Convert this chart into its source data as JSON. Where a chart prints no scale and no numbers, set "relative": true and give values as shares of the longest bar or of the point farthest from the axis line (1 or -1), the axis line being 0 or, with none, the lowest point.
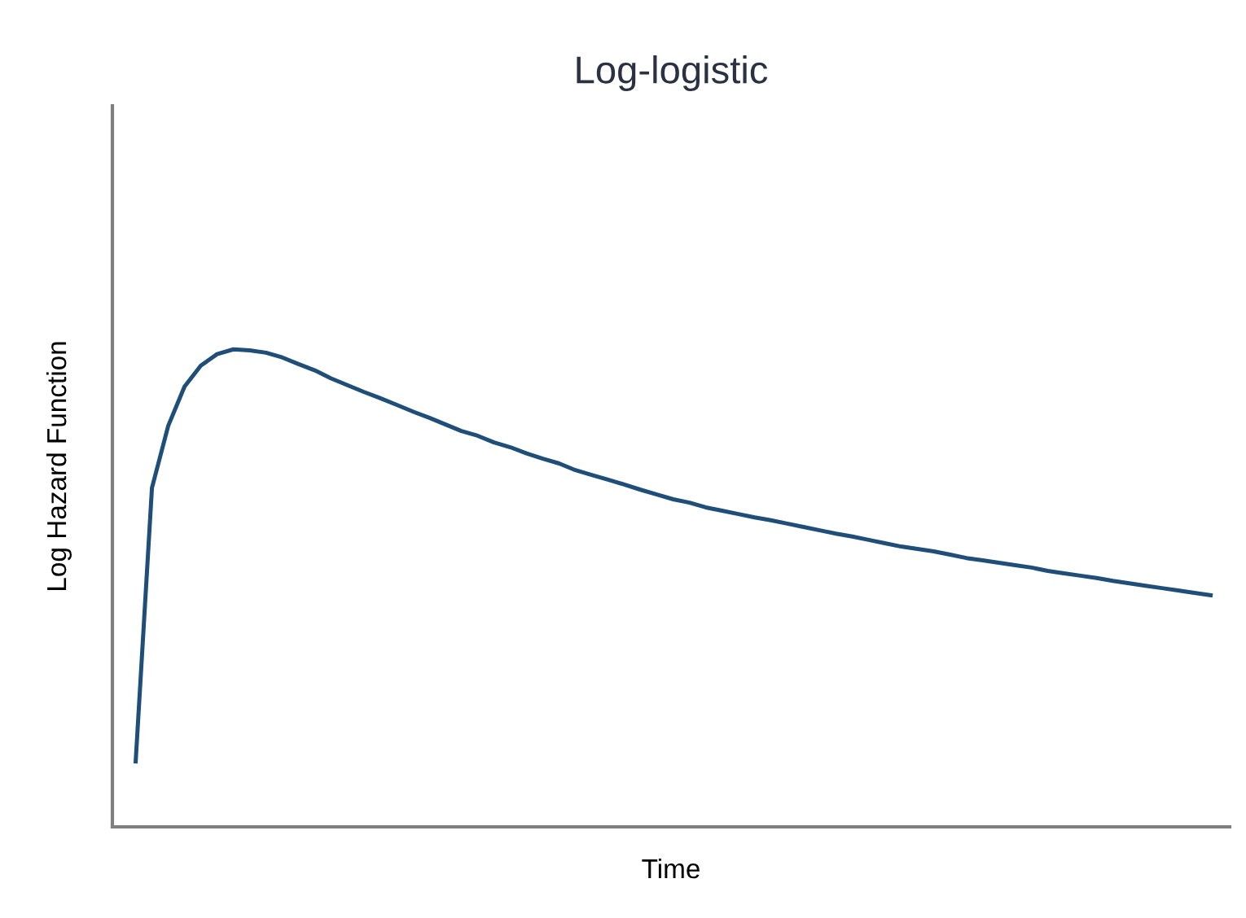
{
  "chart_data": {
    "type": "line",
    "title": "Log-logistic",
    "xlabel": "Time",
    "ylabel": "Log Hazard Function",
    "relative": true,
    "marker": "none",
    "line_style": "solid",
    "categories": [
      null,
      null,
      null,
      null,
      null,
      null,
      null,
      null,
      null,
      null,
      null,
      null,
      null,
      null,
      null,
      null,
      null,
      null,
      null,
      null,
      null,
      null,
      null,
      null,
      null,
      null,
      null,
      null,
      null,
      null,
      null,
      null,
      null,
      null,
      null,
      null,
      null,
      null,
      null,
      null,
      null,
      null,
      null,
      null,
      null,
      null,
      null,
      null,
      null,
      null,
      null,
      null,
      null,
      null,
      null,
      null,
      null,
      null,
      null,
      null,
      null,
      null,
      null,
      null,
      null,
      null,
      null
    ],
    "series": [
      {
        "color": "#1f4e79",
        "values": [
          0.137,
          0.71,
          0.84,
          0.922,
          0.966,
          0.99,
          1.0,
          0.998,
          0.993,
          0.983,
          0.969,
          0.956,
          0.939,
          0.925,
          0.911,
          0.898,
          0.884,
          0.87,
          0.857,
          0.843,
          0.829,
          0.819,
          0.805,
          0.795,
          0.782,
          0.771,
          0.761,
          0.747,
          0.737,
          0.727,
          0.717,
          0.706,
          0.696,
          0.686,
          0.679,
          0.669,
          0.662,
          0.655,
          0.648,
          0.642,
          0.635,
          0.628,
          0.621,
          0.614,
          0.608,
          0.601,
          0.594,
          0.587,
          0.582,
          0.577,
          0.57,
          0.563,
          0.558,
          0.553,
          0.548,
          0.543,
          0.536,
          0.531,
          0.526,
          0.521,
          0.515,
          0.51,
          0.505,
          0.5,
          0.495,
          0.49,
          0.485
        ]
      }
    ]
  }
}
